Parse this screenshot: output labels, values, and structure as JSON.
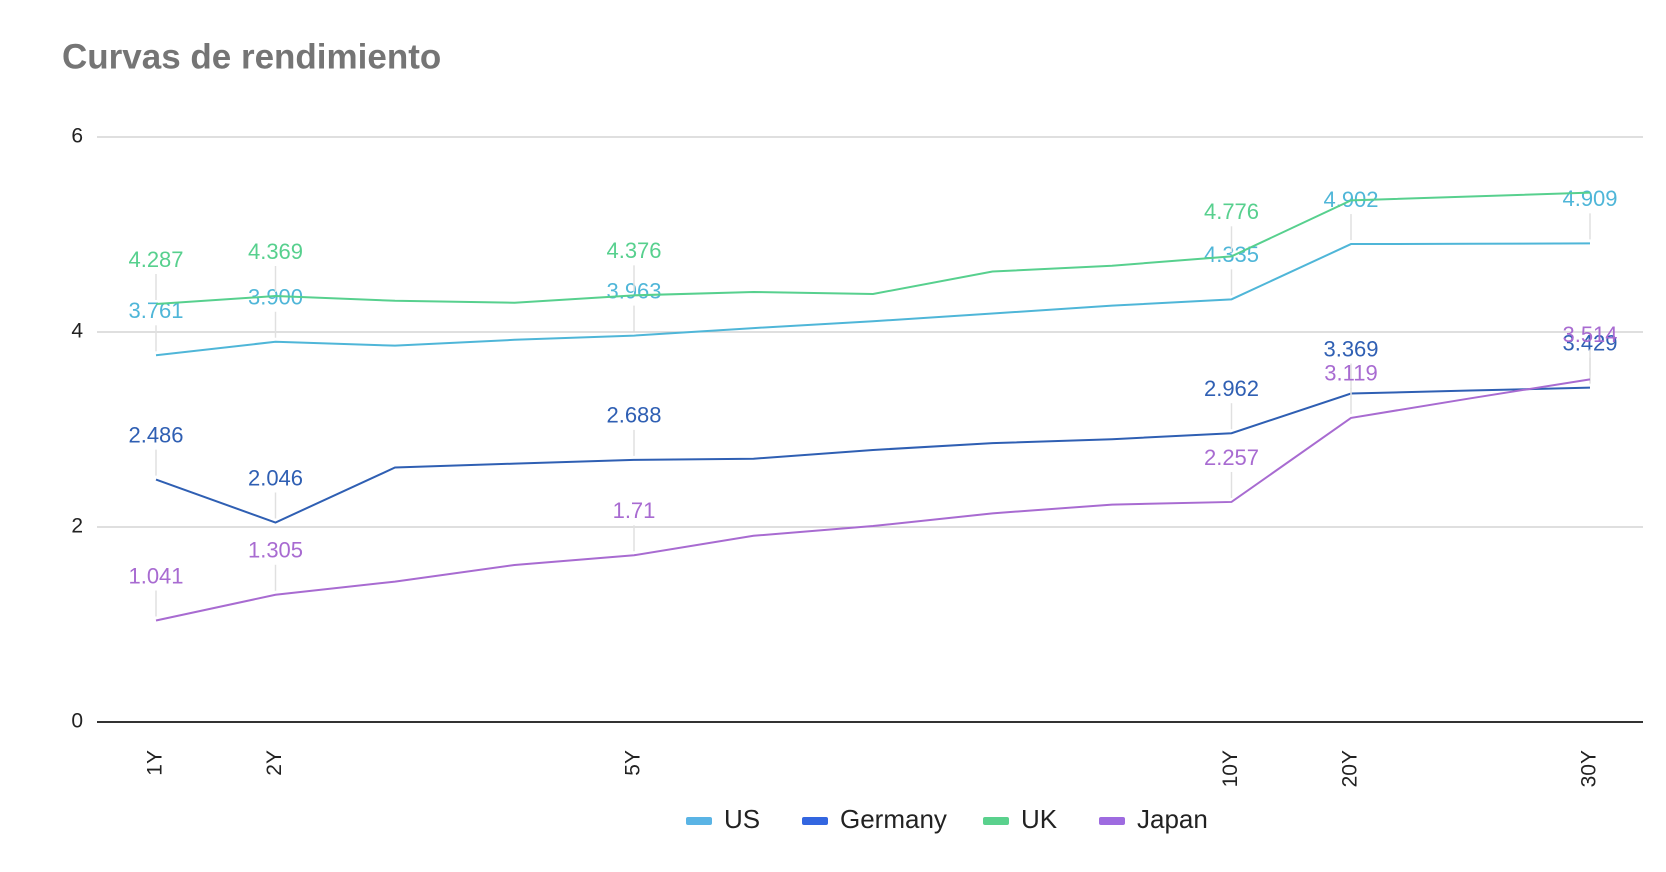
{
  "chart_data": {
    "type": "line",
    "title": "Curvas de rendimiento",
    "categories": [
      "1Y",
      "2Y",
      null,
      null,
      "5Y",
      null,
      null,
      null,
      null,
      "10Y",
      "20Y",
      null,
      "30Y"
    ],
    "ylim": [
      0,
      6
    ],
    "yticks": [
      0,
      2,
      4,
      6
    ],
    "grid": true,
    "legend": "bottom",
    "series": [
      {
        "name": "US",
        "color": "#4fb6d8",
        "legend_color": "#5ab4e5",
        "values": [
          3.761,
          3.9,
          3.86,
          3.92,
          3.963,
          4.04,
          4.11,
          4.19,
          4.27,
          4.335,
          4.902,
          4.905,
          4.909
        ],
        "value_labels": [
          "3.761",
          "3.900",
          null,
          null,
          "3.963",
          null,
          null,
          null,
          null,
          "4.335",
          "4.902",
          null,
          "4.909"
        ]
      },
      {
        "name": "Germany",
        "color": "#2f5fb3",
        "legend_color": "#3366e0",
        "values": [
          2.486,
          2.046,
          2.61,
          2.65,
          2.688,
          2.7,
          2.79,
          2.86,
          2.9,
          2.962,
          3.369,
          3.4,
          3.429
        ],
        "value_labels": [
          "2.486",
          "2.046",
          null,
          null,
          "2.688",
          null,
          null,
          null,
          null,
          "2.962",
          "3.369",
          null,
          "3.429"
        ]
      },
      {
        "name": "UK",
        "color": "#57d08e",
        "legend_color": "#5ad18d",
        "values": [
          4.287,
          4.369,
          4.32,
          4.3,
          4.376,
          4.41,
          4.39,
          4.62,
          4.68,
          4.776,
          5.35,
          5.39,
          5.43
        ],
        "value_labels": [
          "4.287",
          "4.369",
          null,
          null,
          "4.376",
          null,
          null,
          null,
          null,
          "4.776",
          null,
          null,
          null
        ]
      },
      {
        "name": "Japan",
        "color": "#a86bd1",
        "legend_color": "#9e6be0",
        "values": [
          1.041,
          1.305,
          1.44,
          1.61,
          1.71,
          1.91,
          2.01,
          2.14,
          2.23,
          2.257,
          3.119,
          3.32,
          3.514
        ],
        "value_labels": [
          "1.041",
          "1.305",
          null,
          null,
          "1.71",
          null,
          null,
          null,
          null,
          "2.257",
          "3.119",
          null,
          "3.514"
        ]
      }
    ]
  }
}
